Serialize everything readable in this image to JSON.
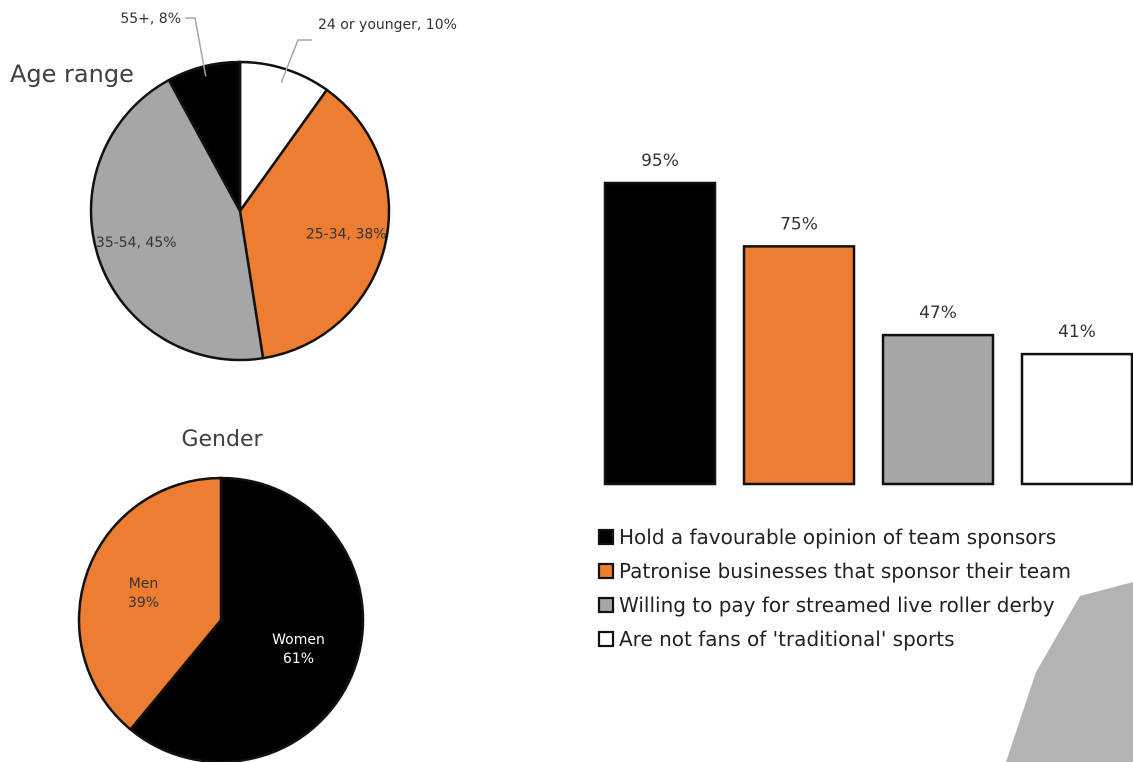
{
  "chart_data": [
    {
      "type": "pie",
      "title": "Age range",
      "slices": [
        {
          "label": "24 or younger",
          "value": 10,
          "display": "24 or younger, 10%",
          "color": "#ffffff"
        },
        {
          "label": "25-34",
          "value": 38,
          "display": "25-34, 38%",
          "color": "#ed7d31"
        },
        {
          "label": "35-54",
          "value": 45,
          "display": "35-54, 45%",
          "color": "#a6a6a6"
        },
        {
          "label": "55+",
          "value": 8,
          "display": "55+, 8%",
          "color": "#000000"
        }
      ]
    },
    {
      "type": "pie",
      "title": "Gender",
      "slices": [
        {
          "label": "Women",
          "value": 61,
          "display_name": "Women",
          "display_value": "61%",
          "color": "#000000"
        },
        {
          "label": "Men",
          "value": 39,
          "display_name": "Men",
          "display_value": "39%",
          "color": "#ed7d31"
        }
      ]
    },
    {
      "type": "bar",
      "ylim": [
        0,
        100
      ],
      "series": [
        {
          "name": "Hold a favourable opinion of team sponsors",
          "value": 95,
          "display": "95%",
          "color": "#000000"
        },
        {
          "name": "Patronise businesses that sponsor their team",
          "value": 75,
          "display": "75%",
          "color": "#ed7d31"
        },
        {
          "name": "Willing to pay for streamed live roller derby",
          "value": 47,
          "display": "47%",
          "color": "#a6a6a6"
        },
        {
          "name": "Are not fans of 'traditional' sports",
          "value": 41,
          "display": "41%",
          "color": "#ffffff"
        }
      ],
      "legend": "bottom"
    }
  ],
  "decor_color": "#b3b3b3"
}
